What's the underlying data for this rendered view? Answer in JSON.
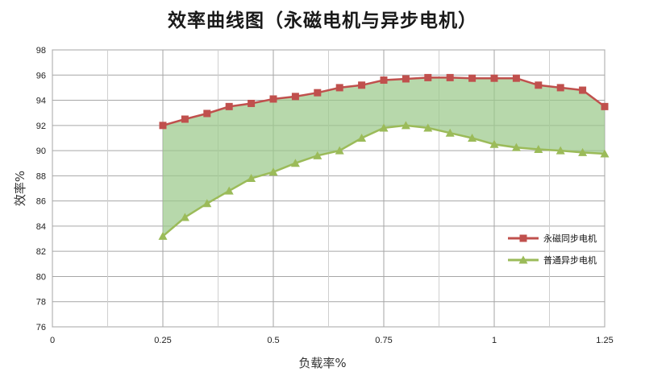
{
  "chart_data": {
    "type": "area",
    "title": "效率曲线图（永磁电机与异步电机）",
    "xlabel": "负载率%",
    "ylabel": "效率%",
    "xlim": [
      0,
      1.25
    ],
    "ylim": [
      76,
      98
    ],
    "x_ticks": [
      "0",
      "0.25",
      "0.5",
      "0.75",
      "1",
      "1.25"
    ],
    "y_ticks": [
      "76",
      "78",
      "80",
      "82",
      "84",
      "86",
      "88",
      "90",
      "92",
      "94",
      "96",
      "98"
    ],
    "x_tick_values": [
      0,
      0.25,
      0.5,
      0.75,
      1,
      1.25
    ],
    "y_tick_values": [
      76,
      78,
      80,
      82,
      84,
      86,
      88,
      90,
      92,
      94,
      96,
      98
    ],
    "x_minor_gridlines": [
      0.125,
      0.375,
      0.625,
      0.875,
      1.125
    ],
    "grid": true,
    "fill_between_series": true,
    "legend_position": "right",
    "x": [
      0.25,
      0.3,
      0.35,
      0.4,
      0.45,
      0.5,
      0.55,
      0.6,
      0.65,
      0.7,
      0.75,
      0.8,
      0.85,
      0.9,
      0.95,
      1.0,
      1.05,
      1.1,
      1.15,
      1.2,
      1.25
    ],
    "series": [
      {
        "name": "永磁同步电机",
        "marker": "square",
        "color": "#c0504d",
        "values": [
          92.0,
          92.5,
          92.95,
          93.5,
          93.75,
          94.1,
          94.3,
          94.6,
          95.0,
          95.2,
          95.6,
          95.7,
          95.8,
          95.8,
          95.75,
          95.75,
          95.75,
          95.2,
          95.0,
          94.8,
          93.5
        ]
      },
      {
        "name": "普通异步电机",
        "marker": "triangle",
        "color": "#9bbb59",
        "values": [
          83.2,
          84.7,
          85.8,
          86.8,
          87.8,
          88.3,
          89.0,
          89.6,
          90.0,
          91.0,
          91.8,
          92.0,
          91.8,
          91.4,
          91.0,
          90.5,
          90.25,
          90.1,
          90.0,
          89.85,
          89.75
        ]
      }
    ],
    "fill_color": "#9bc98a"
  }
}
